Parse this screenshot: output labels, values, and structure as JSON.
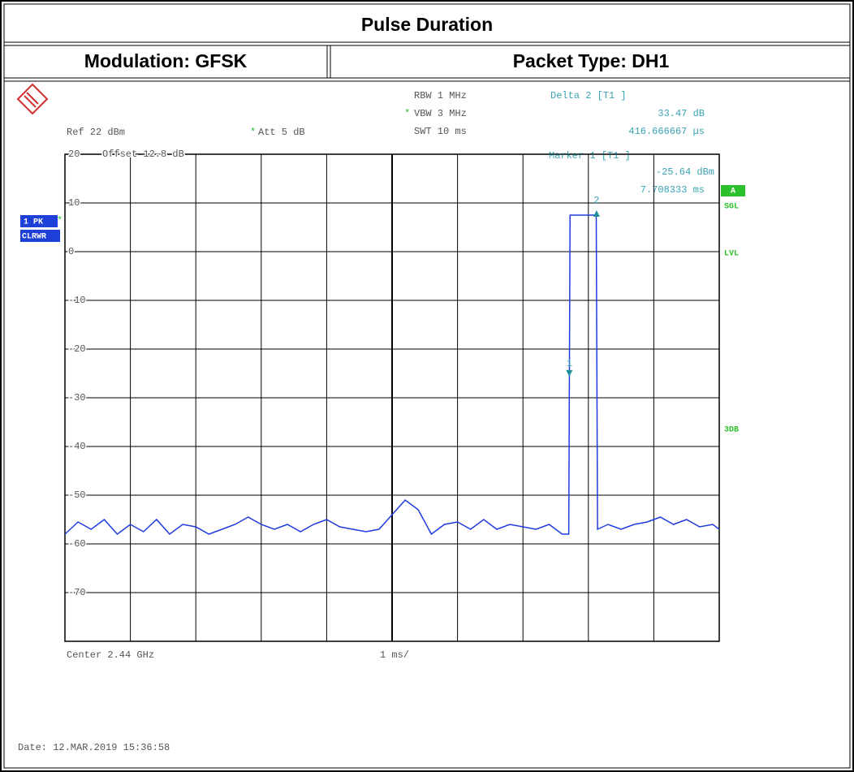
{
  "header": {
    "title": "Pulse Duration",
    "left": "Modulation: GFSK",
    "right": "Packet Type: DH1"
  },
  "screen": {
    "top_left": [
      "Ref  22 dBm",
      "Offset  12.8 dB"
    ],
    "att_star": "*",
    "att": "Att   5 dB",
    "settings": [
      "RBW  1 MHz",
      "VBW  3 MHz",
      "SWT  10 ms"
    ],
    "vbw_star": "*",
    "delta": [
      "Delta 2 [T1 ]",
      "33.47 dB",
      "416.666667 µs"
    ],
    "marker": [
      "Marker 1 [T1 ]",
      "-25.64 dBm",
      "7.708333 ms"
    ],
    "left_badges": [
      "1 PK",
      "CLRWR"
    ],
    "pk_star": "*",
    "right_badge": "A",
    "right_labels": [
      "SGL",
      "LVL",
      "3DB"
    ],
    "footer": [
      "Center 2.44 GHz",
      "1 ms/"
    ],
    "date": "Date: 12.MAR.2019  15:36:58"
  },
  "chart_data": {
    "type": "line",
    "xlim": [
      0,
      10
    ],
    "ylim": [
      -80,
      20
    ],
    "yticks": [
      20,
      10,
      0,
      -10,
      -20,
      -30,
      -40,
      -50,
      -60,
      -70
    ],
    "grid": true,
    "series": [
      {
        "color": "#1f3be0",
        "x": [
          0,
          0.2,
          0.4,
          0.6,
          0.8,
          1.0,
          1.2,
          1.4,
          1.6,
          1.8,
          2.0,
          2.2,
          2.4,
          2.6,
          2.8,
          3.0,
          3.2,
          3.4,
          3.6,
          3.8,
          4.0,
          4.2,
          4.4,
          4.6,
          4.8,
          5.0,
          5.2,
          5.4,
          5.6,
          5.8,
          6.0,
          6.2,
          6.4,
          6.6,
          6.8,
          7.0,
          7.2,
          7.4,
          7.6,
          7.7,
          7.72,
          8.12,
          8.14,
          8.3,
          8.5,
          8.7,
          8.9,
          9.1,
          9.3,
          9.5,
          9.7,
          9.9,
          10
        ],
        "values": [
          -58,
          -55.5,
          -57,
          -55,
          -58,
          -56,
          -57.5,
          -55,
          -58,
          -56,
          -56.5,
          -58,
          -57,
          -56,
          -54.5,
          -56,
          -57,
          -56,
          -57.5,
          -56,
          -55,
          -56.5,
          -57,
          -57.5,
          -57,
          -54,
          -51,
          -53,
          -58,
          -56,
          -55.5,
          -57,
          -55,
          -57,
          -56,
          -56.5,
          -57,
          -56,
          -58,
          -58,
          7.5,
          7.5,
          -57,
          -56,
          -57,
          -56,
          -55.5,
          -54.5,
          -56,
          -55,
          -56.5,
          -56,
          -57
        ]
      }
    ],
    "markers": [
      {
        "label": "1",
        "x": 7.708333,
        "y": -25.64,
        "color": "#1e8f9a"
      },
      {
        "label": "2",
        "x": 8.125,
        "y": 7.83,
        "color": "#1e8f9a"
      }
    ]
  }
}
